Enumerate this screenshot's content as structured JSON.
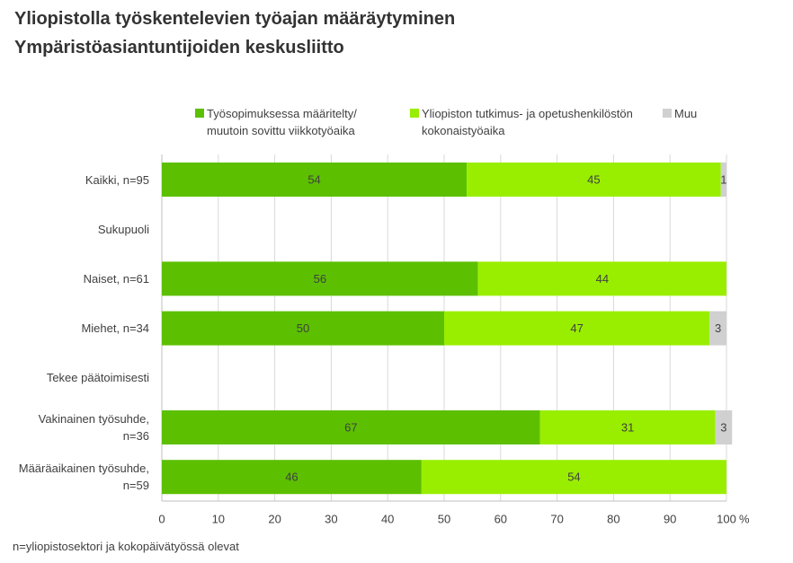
{
  "chart_data": {
    "type": "stacked-bar-horizontal",
    "title": "Yliopistolla työskentelevien työajan määräytyminen",
    "subtitle": "Ympäristöasiantuntijoiden keskusliitto",
    "categories": [
      "Kaikki, n=95",
      "Sukupuoli",
      "Naiset, n=61",
      "Miehet, n=34",
      "Tekee päätoimisesti",
      "Vakinainen työsuhde, n=36",
      "Määräaikainen työsuhde, n=59"
    ],
    "series": [
      {
        "name": "Työsopimuksessa määritelty/ muutoin sovittu viikkotyöaika",
        "color": "#5cc000",
        "values": [
          54,
          null,
          56,
          50,
          null,
          67,
          46
        ]
      },
      {
        "name": "Yliopiston tutkimus- ja opetushenkilöstön kokonaistyöaika",
        "color": "#99ee00",
        "values": [
          45,
          null,
          44,
          47,
          null,
          31,
          54
        ]
      },
      {
        "name": "Muu",
        "color": "#d0d0d0",
        "values": [
          1,
          null,
          null,
          3,
          null,
          3,
          null
        ]
      }
    ],
    "xlim": [
      0,
      100
    ],
    "xticks": [
      0,
      10,
      20,
      30,
      40,
      50,
      60,
      70,
      80,
      90,
      100
    ],
    "x_label": "%",
    "grid": true,
    "note": "n=yliopistosektori ja kokopäivätyössä olevat"
  }
}
